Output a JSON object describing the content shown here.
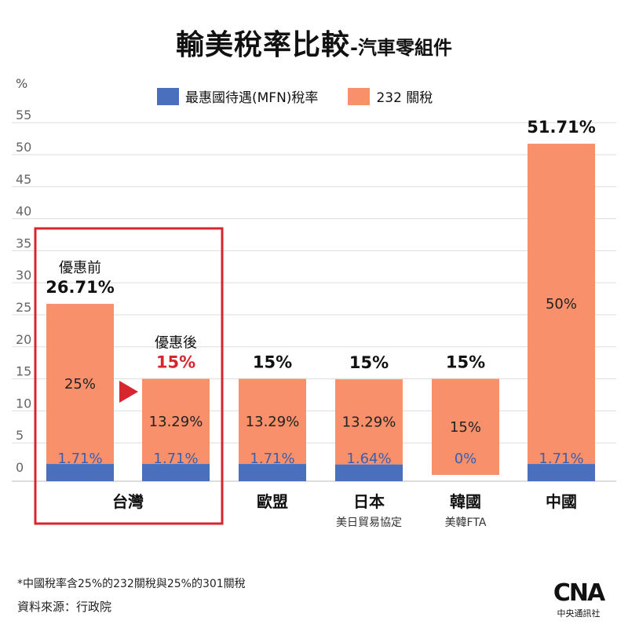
{
  "title": {
    "main": "輸美稅率比較",
    "sub": "-汽車零組件"
  },
  "footnote": "*中國稅率含25%的232關稅與25%的301關稅",
  "source": "資料來源：行政院",
  "logo": {
    "mark": "CNA",
    "text": "中央通訊社"
  },
  "colors": {
    "mfn": "#4a6fbd",
    "s232": "#f8906b",
    "highlight": "#d7262e",
    "grid": "#dddddd"
  },
  "chart_data": {
    "type": "bar",
    "stacked": true,
    "ylabel": "%",
    "ylim": [
      0,
      55
    ],
    "yticks": [
      0,
      5,
      10,
      15,
      20,
      25,
      30,
      35,
      40,
      45,
      50,
      55
    ],
    "grid": true,
    "legend_position": "top",
    "series_names": [
      "最惠國待遇(MFN)稅率",
      "232 關稅"
    ],
    "bars": [
      {
        "mfn": 1.71,
        "mfn_label": "1.71%",
        "s232": 25,
        "s232_label": "25%",
        "total_label": "26.71%",
        "note": "優惠前",
        "total_color": "#111111"
      },
      {
        "mfn": 1.71,
        "mfn_label": "1.71%",
        "s232": 13.29,
        "s232_label": "13.29%",
        "total_label": "15%",
        "note": "優惠後",
        "total_color": "#d7262e"
      },
      {
        "mfn": 1.71,
        "mfn_label": "1.71%",
        "s232": 13.29,
        "s232_label": "13.29%",
        "total_label": "15%",
        "note": "",
        "total_color": "#111111"
      },
      {
        "mfn": 1.64,
        "mfn_label": "1.64%",
        "s232": 13.29,
        "s232_label": "13.29%",
        "total_label": "15%",
        "note": "",
        "total_color": "#111111"
      },
      {
        "mfn": 0,
        "mfn_label": "0%",
        "s232": 15,
        "s232_label": "15%",
        "total_label": "15%",
        "note": "",
        "total_color": "#111111"
      },
      {
        "mfn": 1.71,
        "mfn_label": "1.71%",
        "s232": 50,
        "s232_label": "50%",
        "total_label": "51.71%",
        "note": "",
        "total_color": "#111111"
      }
    ],
    "groups": [
      {
        "name": "台灣",
        "sub": ""
      },
      {
        "name": "歐盟",
        "sub": ""
      },
      {
        "name": "日本",
        "sub": "美日貿易協定"
      },
      {
        "name": "韓國",
        "sub": "美韓FTA"
      },
      {
        "name": "中國",
        "sub": ""
      }
    ]
  }
}
